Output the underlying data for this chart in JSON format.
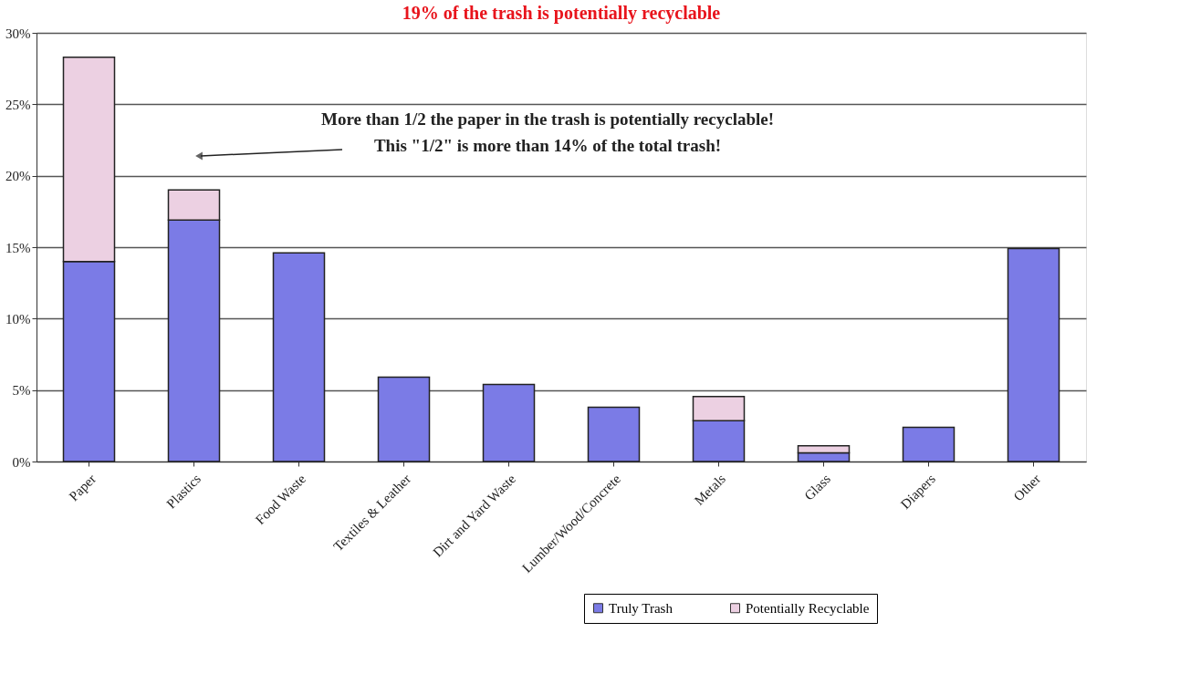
{
  "chart_data": {
    "type": "bar",
    "title": "19% of the trash is potentially recyclable",
    "categories": [
      "Paper",
      "Plastics",
      "Food Waste",
      "Textiles & Leather",
      "Dirt and Yard Waste",
      "Lumber/Wood/Concrete",
      "Metals",
      "Glass",
      "Diapers",
      "Other"
    ],
    "stacked": true,
    "series": [
      {
        "name": "Truly Trash",
        "color": "#7b7be6",
        "values": [
          14.0,
          16.9,
          14.6,
          5.9,
          5.4,
          3.8,
          2.85,
          0.6,
          2.4,
          14.9
        ]
      },
      {
        "name": "Potentially Recyclable",
        "color": "#ecd0e2",
        "values": [
          14.3,
          2.1,
          null,
          null,
          null,
          null,
          1.7,
          0.5,
          null,
          null
        ]
      }
    ],
    "ylim": [
      0,
      30
    ],
    "yticks": [
      {
        "value": 0,
        "label": "0%"
      },
      {
        "value": 5,
        "label": "5%"
      },
      {
        "value": 10,
        "label": "10%"
      },
      {
        "value": 15,
        "label": "15%"
      },
      {
        "value": 20,
        "label": "20%"
      },
      {
        "value": 25,
        "label": "25%"
      },
      {
        "value": 30,
        "label": "30%"
      }
    ],
    "grid": "y",
    "legend": "bottom right",
    "annotations": [
      "More than 1/2 the paper in the trash is potentially recyclable!",
      "This \"1/2\" is more than 14% of the total trash!"
    ]
  }
}
